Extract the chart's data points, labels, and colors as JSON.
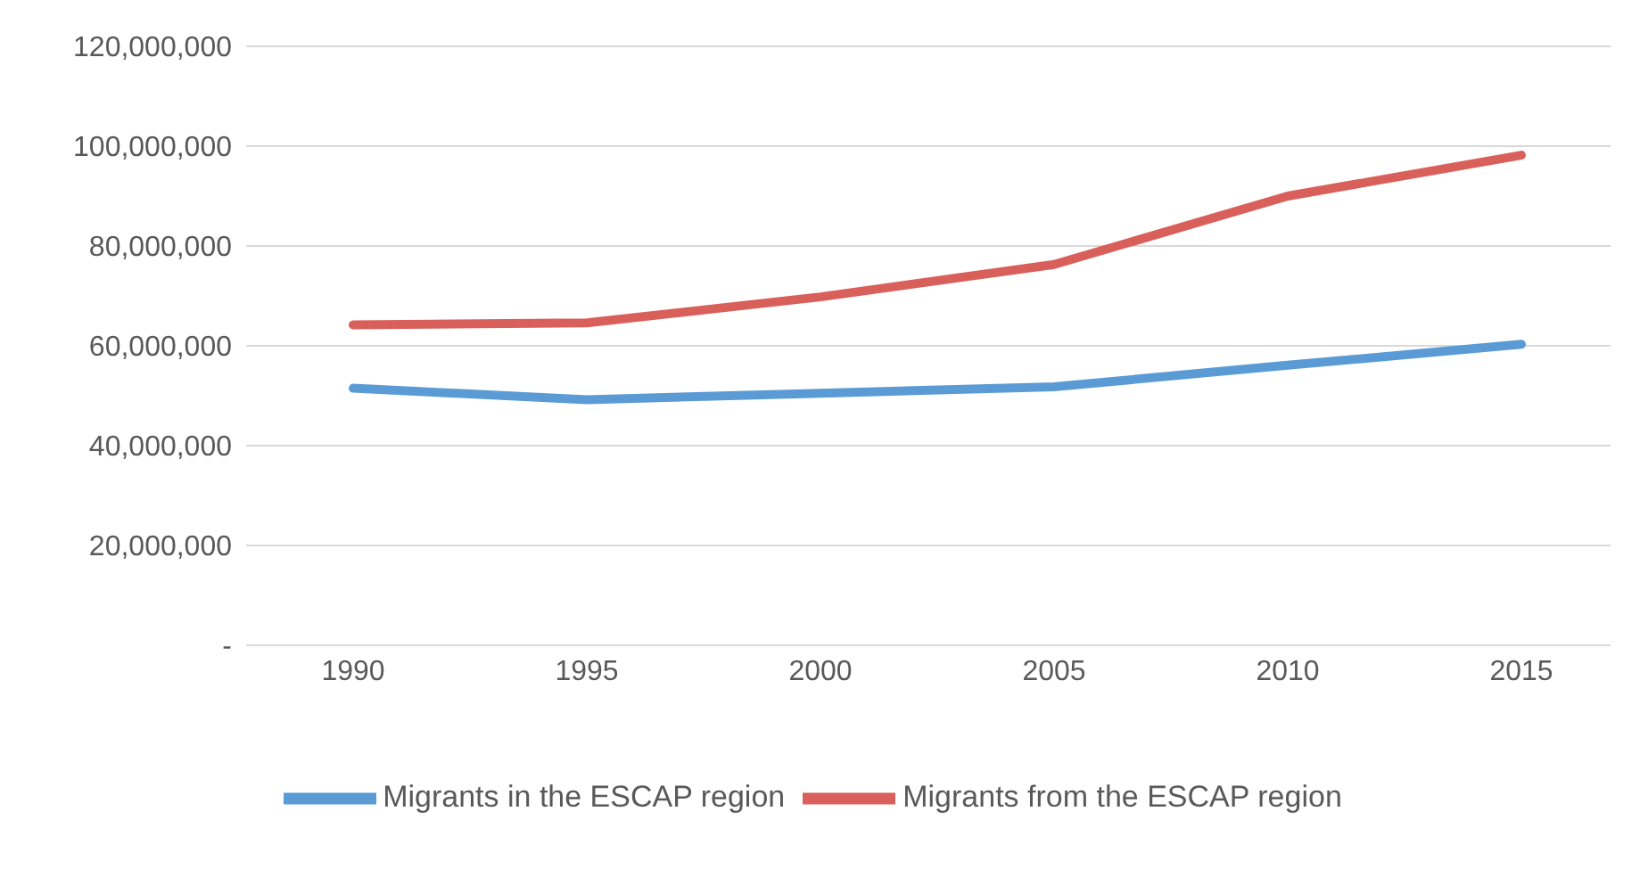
{
  "chart_data": {
    "type": "line",
    "categories": [
      "1990",
      "1995",
      "2000",
      "2005",
      "2010",
      "2015"
    ],
    "series": [
      {
        "name": "Migrants in the ESCAP region",
        "color": "#5b9bd5",
        "values": [
          51500000,
          49200000,
          50500000,
          51800000,
          56100000,
          60300000
        ]
      },
      {
        "name": "Migrants from the ESCAP region",
        "color": "#d9605a",
        "values": [
          64200000,
          64600000,
          69800000,
          76300000,
          90000000,
          98200000
        ]
      }
    ],
    "ylim": [
      0,
      120000000
    ],
    "yticks": [
      {
        "value": 0,
        "label": "-"
      },
      {
        "value": 20000000,
        "label": "20,000,000"
      },
      {
        "value": 40000000,
        "label": "40,000,000"
      },
      {
        "value": 60000000,
        "label": "60,000,000"
      },
      {
        "value": 80000000,
        "label": "80,000,000"
      },
      {
        "value": 100000000,
        "label": "100,000,000"
      },
      {
        "value": 120000000,
        "label": "120,000,000"
      }
    ],
    "grid": "y",
    "legend": "bottom",
    "marker": "none",
    "line_style": "solid"
  }
}
